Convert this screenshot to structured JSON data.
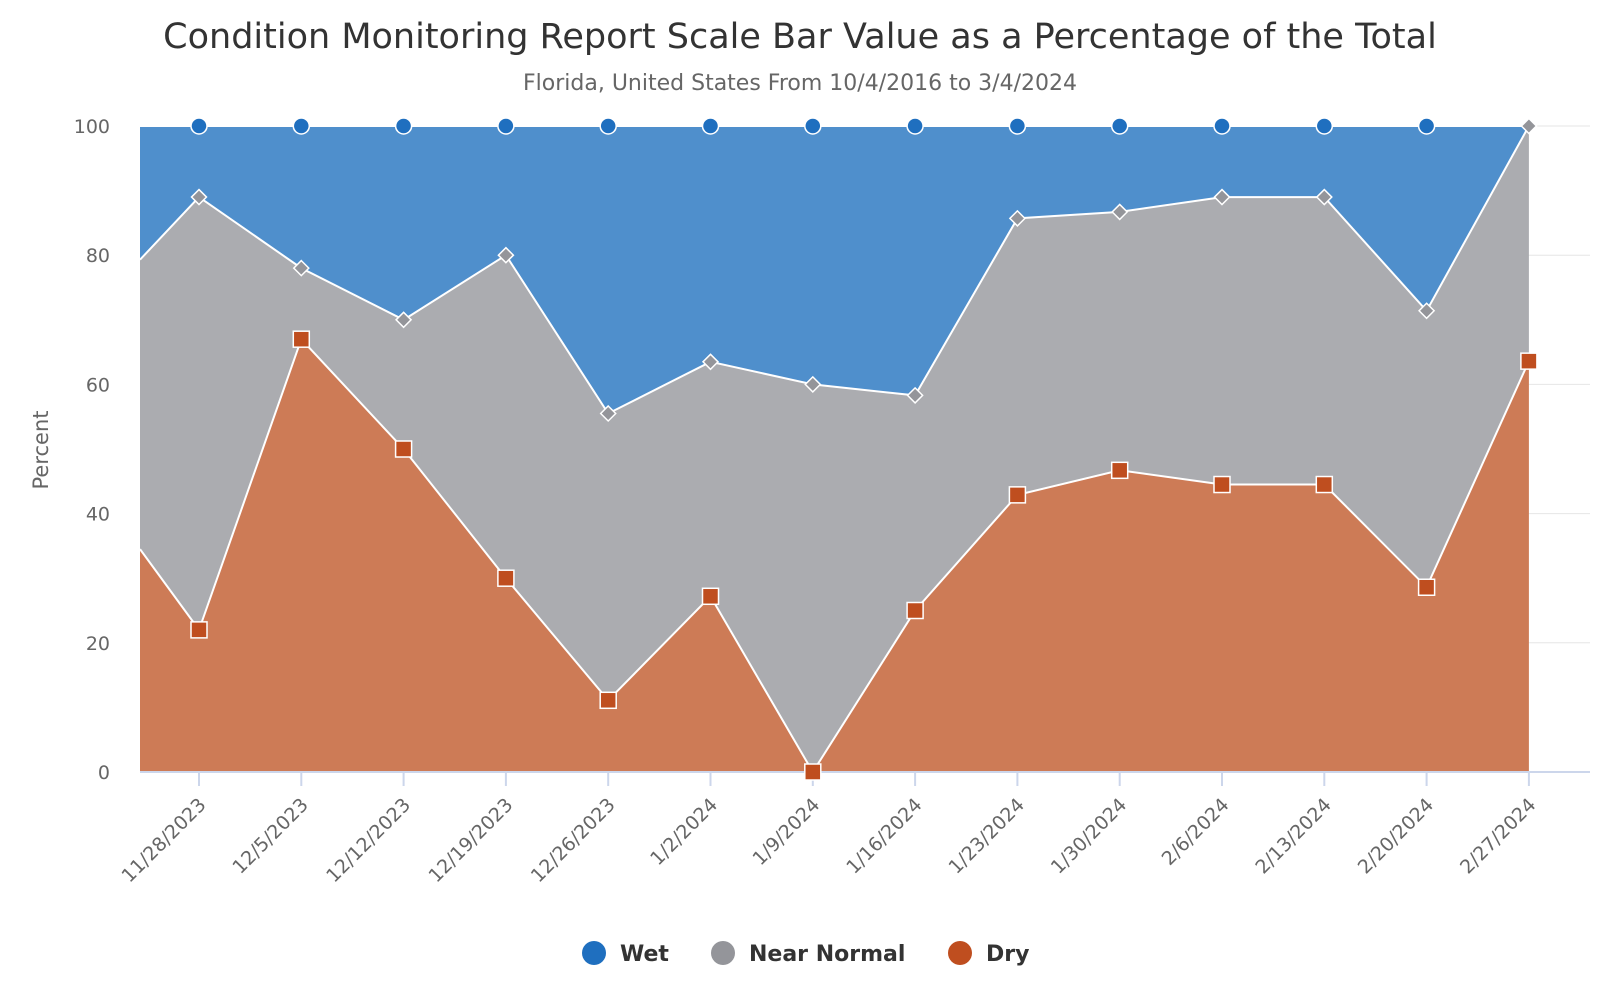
{
  "chart_data": {
    "type": "area",
    "stacking": "percent",
    "title": "Condition Monitoring Report Scale Bar Value as a Percentage of the Total",
    "subtitle": "Florida, United States From 10/4/2016 to 3/4/2024",
    "ylabel": "Percent",
    "xlabel": "",
    "ylim": [
      0,
      100
    ],
    "yticks": [
      "0",
      "20",
      "40",
      "60",
      "80",
      "100"
    ],
    "grid": true,
    "legend": "bottom-center",
    "categories": [
      "11/28/2023",
      "12/5/2023",
      "12/12/2023",
      "12/19/2023",
      "12/26/2023",
      "1/2/2024",
      "1/9/2024",
      "1/16/2024",
      "1/23/2024",
      "1/30/2024",
      "2/6/2024",
      "2/13/2024",
      "2/20/2024",
      "2/27/2024"
    ],
    "edge_start": {
      "dry": 34.5,
      "near_normal_top": 79.3
    },
    "series": [
      {
        "name": "Wet",
        "key": "wet",
        "color": "#1f6fbf",
        "fill": "#4f8fcc",
        "marker": "circle",
        "values": [
          11,
          22,
          30,
          20,
          44.5,
          36.5,
          40,
          41.7,
          14.3,
          13.3,
          11,
          11,
          28.6,
          0
        ]
      },
      {
        "name": "Near Normal",
        "key": "near",
        "color": "#94959a",
        "fill": "#abacb0",
        "marker": "diamond",
        "values": [
          67,
          11,
          20,
          50,
          44.4,
          36.3,
          60,
          33.3,
          42.8,
          40,
          44.5,
          44.5,
          42.8,
          36.4
        ]
      },
      {
        "name": "Dry",
        "key": "dry",
        "color": "#bf4e1f",
        "fill": "#cd7b56",
        "marker": "square",
        "values": [
          22,
          67,
          50,
          30,
          11.1,
          27.2,
          0,
          25,
          42.9,
          46.7,
          44.5,
          44.5,
          28.6,
          63.6
        ]
      }
    ]
  }
}
